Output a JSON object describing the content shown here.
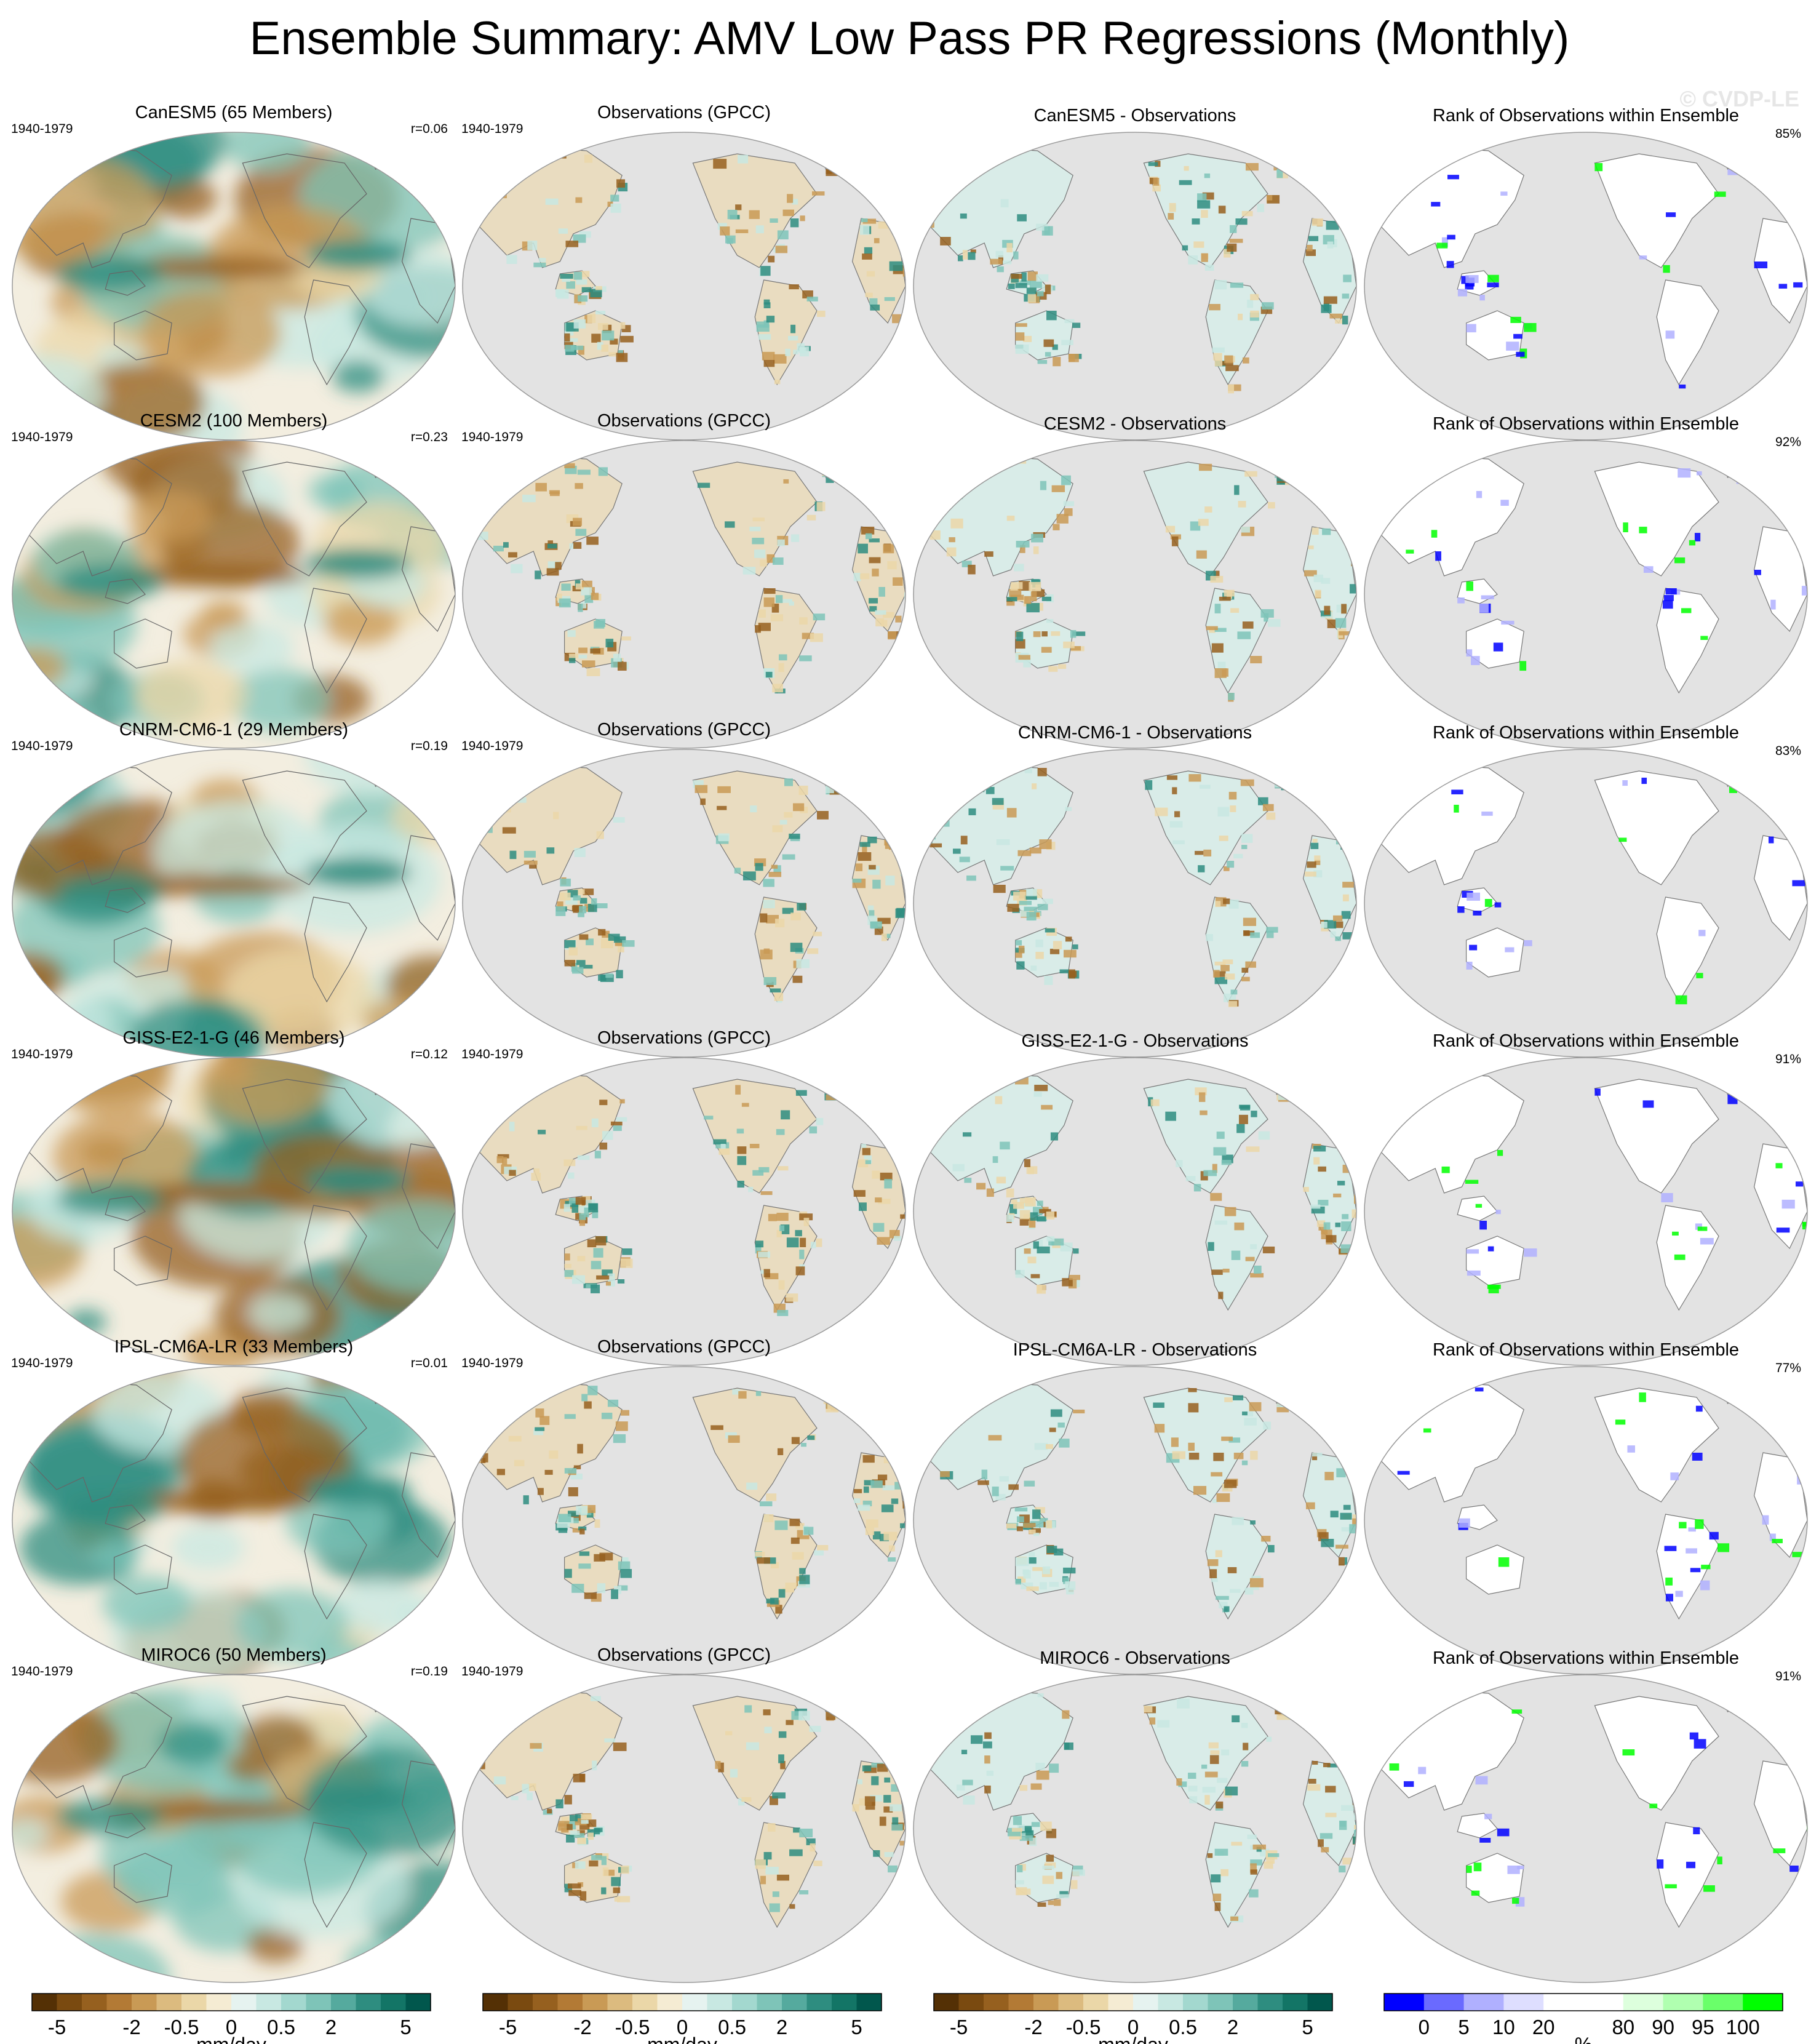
{
  "page_title": "Ensemble Summary: AMV Low Pass PR Regressions (Monthly)",
  "watermark": "© CVDP-LE",
  "colors": {
    "brown_dark": "#543005",
    "teal_dark": "#01574d",
    "land_gray": "#e3e3e3",
    "rank_blue": "#0000ff",
    "rank_green": "#00ff00"
  },
  "chart_data": {
    "type": "heatmap",
    "period": "1940-1979",
    "column_titles": {
      "observations": "Observations (GPCC)",
      "difference_suffix": " - Observations",
      "rank": "Rank of Observations within Ensemble"
    },
    "rows": [
      {
        "model": "CanESM5",
        "members": 65,
        "title": "CanESM5 (65 Members)",
        "r_label": "r=0.06",
        "diff_title": "CanESM5 - Observations",
        "rank_percent": "85%"
      },
      {
        "model": "CESM2",
        "members": 100,
        "title": "CESM2 (100 Members)",
        "r_label": "r=0.23",
        "diff_title": "CESM2 - Observations",
        "rank_percent": "92%"
      },
      {
        "model": "CNRM-CM6-1",
        "members": 29,
        "title": "CNRM-CM6-1 (29 Members)",
        "r_label": "r=0.19",
        "diff_title": "CNRM-CM6-1 - Observations",
        "rank_percent": "83%"
      },
      {
        "model": "GISS-E2-1-G",
        "members": 46,
        "title": "GISS-E2-1-G (46 Members)",
        "r_label": "r=0.12",
        "diff_title": "GISS-E2-1-G - Observations",
        "rank_percent": "91%"
      },
      {
        "model": "IPSL-CM6A-LR",
        "members": 33,
        "title": "IPSL-CM6A-LR (33 Members)",
        "r_label": "r=0.01",
        "diff_title": "IPSL-CM6A-LR - Observations",
        "rank_percent": "77%"
      },
      {
        "model": "MIROC6",
        "members": 50,
        "title": "MIROC6 (50 Members)",
        "r_label": "r=0.19",
        "diff_title": "MIROC6 - Observations",
        "rank_percent": "91%"
      }
    ],
    "colorbars": [
      {
        "name": "regression",
        "unit": "mm/day",
        "colors": [
          "#543005",
          "#7a4a10",
          "#96601f",
          "#b37a35",
          "#c99a55",
          "#dcbb7f",
          "#ebd7a8",
          "#f5ecd3",
          "#e6f3f0",
          "#c8e8e2",
          "#a3d8cf",
          "#7ec4b8",
          "#55aa9e",
          "#2e8d80",
          "#137566",
          "#01574d"
        ],
        "tick_labels": [
          "-5",
          "-2",
          "-0.5",
          "0",
          "0.5",
          "2",
          "5"
        ]
      },
      {
        "name": "regression",
        "unit": "mm/day",
        "colors": [
          "#543005",
          "#7a4a10",
          "#96601f",
          "#b37a35",
          "#c99a55",
          "#dcbb7f",
          "#ebd7a8",
          "#f5ecd3",
          "#e6f3f0",
          "#c8e8e2",
          "#a3d8cf",
          "#7ec4b8",
          "#55aa9e",
          "#2e8d80",
          "#137566",
          "#01574d"
        ],
        "tick_labels": [
          "-5",
          "-2",
          "-0.5",
          "0",
          "0.5",
          "2",
          "5"
        ]
      },
      {
        "name": "difference",
        "unit": "mm/day",
        "colors": [
          "#543005",
          "#7a4a10",
          "#96601f",
          "#b37a35",
          "#c99a55",
          "#dcbb7f",
          "#ebd7a8",
          "#f5ecd3",
          "#e6f3f0",
          "#c8e8e2",
          "#a3d8cf",
          "#7ec4b8",
          "#55aa9e",
          "#2e8d80",
          "#137566",
          "#01574d"
        ],
        "tick_labels": [
          "-5",
          "-2",
          "-0.5",
          "0",
          "0.5",
          "2",
          "5"
        ]
      },
      {
        "name": "rank",
        "unit": "%",
        "colors": [
          "#0000ff",
          "#6a6aff",
          "#b0b0ff",
          "#dedeff",
          "#ffffff",
          "#ffffff",
          "#ddffdd",
          "#b0ffb0",
          "#6aff6a",
          "#00ff00"
        ],
        "tick_labels": [
          "0",
          "5",
          "10",
          "20",
          "80",
          "90",
          "95",
          "100"
        ]
      }
    ]
  }
}
